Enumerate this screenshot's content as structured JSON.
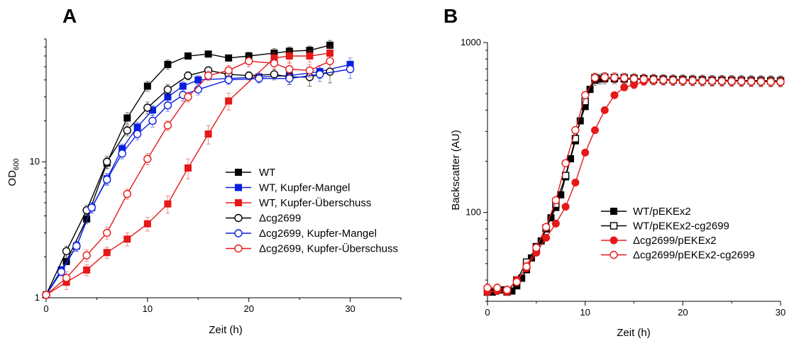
{
  "chart_data": [
    {
      "panel": "A",
      "type": "line",
      "y_scale": "log",
      "xlabel": "Zeit (h)",
      "ylabel": "OD",
      "ylabel_sub": "600",
      "xlim": [
        0,
        35
      ],
      "ylim": [
        1,
        80
      ],
      "x_ticks": [
        0,
        10,
        20,
        30
      ],
      "y_ticks": [
        1,
        10
      ],
      "legend_position": "lower-right",
      "series": [
        {
          "name": "WT",
          "color": "#000000",
          "marker": "filled-square",
          "x": [
            0,
            2,
            4,
            6,
            8,
            10,
            12,
            14,
            16,
            18,
            20,
            22.5,
            24,
            26,
            28
          ],
          "y": [
            1.05,
            1.85,
            3.8,
            9.8,
            21,
            36,
            52,
            60,
            62,
            58,
            60,
            63,
            65,
            66,
            72
          ],
          "err": [
            0,
            0.1,
            0.3,
            0.9,
            2,
            3,
            4,
            3,
            3,
            3,
            4,
            5,
            5,
            5,
            6
          ]
        },
        {
          "name": "WT, Kupfer-Mangel",
          "color": "#0a1ee0",
          "marker": "filled-square",
          "x": [
            0,
            1.5,
            3,
            4.5,
            6,
            7.5,
            9,
            10.5,
            12,
            13.5,
            15,
            18,
            21,
            24,
            27,
            30
          ],
          "y": [
            1.05,
            1.6,
            2.4,
            4.6,
            7.5,
            12.5,
            18,
            24,
            30,
            36,
            40,
            41,
            42,
            43,
            46,
            52
          ],
          "err": [
            0,
            0.1,
            0.2,
            0.4,
            0.7,
            1,
            1.5,
            2,
            2.5,
            3,
            3,
            3,
            3,
            4,
            5,
            6
          ]
        },
        {
          "name": "WT, Kupfer-Überschuss",
          "color": "#e61919",
          "marker": "filled-square",
          "x": [
            0,
            2,
            4,
            6,
            8,
            10,
            12,
            14,
            16,
            18,
            22.5,
            24,
            26,
            28
          ],
          "y": [
            1.05,
            1.3,
            1.6,
            2.15,
            2.7,
            3.5,
            4.9,
            9,
            16,
            28,
            58,
            60,
            60,
            63
          ],
          "err": [
            0,
            0.15,
            0.15,
            0.2,
            0.3,
            0.4,
            0.7,
            1.5,
            2.5,
            4,
            6,
            6,
            6,
            7
          ]
        },
        {
          "name": "Δcg2699",
          "color": "#000000",
          "marker": "open-circle",
          "x": [
            0,
            2,
            4,
            6,
            8,
            10,
            12,
            14,
            16,
            18,
            20,
            22.5,
            24,
            26,
            28
          ],
          "y": [
            1.05,
            2.2,
            4.4,
            10,
            17,
            25,
            34,
            43,
            47,
            44,
            43,
            44,
            42,
            42,
            46
          ],
          "err": [
            0,
            0.2,
            0.4,
            1,
            1.5,
            2.5,
            3,
            3,
            3,
            3,
            3,
            4,
            5,
            6,
            8
          ]
        },
        {
          "name": "Δcg2699, Kupfer-Mangel",
          "color": "#0a1ee0",
          "marker": "open-circle",
          "x": [
            0,
            1.5,
            3,
            4.5,
            6,
            7.5,
            9,
            10.5,
            12,
            13.5,
            15,
            18,
            21,
            24,
            27,
            30
          ],
          "y": [
            1.05,
            1.55,
            2.4,
            4.6,
            7.4,
            11.5,
            16,
            20,
            26,
            31,
            34,
            40,
            41,
            41,
            44,
            48
          ],
          "err": [
            0,
            0.1,
            0.2,
            0.4,
            0.7,
            1,
            1.5,
            2,
            2.5,
            3,
            3,
            3,
            3,
            4,
            5,
            7
          ]
        },
        {
          "name": "Δcg2699, Kupfer-Überschuss",
          "color": "#e61919",
          "marker": "open-circle",
          "x": [
            0,
            2,
            4,
            6,
            8,
            10,
            12,
            14,
            16,
            18,
            20,
            22.5,
            24,
            26,
            28
          ],
          "y": [
            1.05,
            1.4,
            2.05,
            3,
            5.8,
            10.5,
            18.5,
            30,
            43,
            47,
            55,
            53,
            48,
            47,
            55
          ],
          "err": [
            0,
            0.15,
            0.2,
            0.3,
            0.5,
            1,
            1.5,
            2.5,
            3.5,
            4,
            5,
            5,
            5,
            5,
            6
          ]
        }
      ]
    },
    {
      "panel": "B",
      "type": "line",
      "y_scale": "log",
      "xlabel": "Zeit (h)",
      "ylabel": "Backscatter (AU)",
      "xlim": [
        0,
        30
      ],
      "ylim": [
        30,
        1000
      ],
      "x_ticks": [
        0,
        10,
        20,
        30
      ],
      "y_ticks": [
        100,
        1000
      ],
      "legend_position": "center-right",
      "series": [
        {
          "name": "WT/pEKEx2",
          "color": "#000000",
          "marker": "filled-square",
          "x": [
            0,
            0.5,
            1,
            1.5,
            2,
            2.5,
            3,
            3.5,
            4,
            4.5,
            5,
            5.5,
            6,
            6.5,
            7,
            7.5,
            8,
            8.5,
            9,
            9.5,
            10,
            10.5,
            11,
            11.5,
            12,
            13,
            14,
            15,
            16,
            17,
            18,
            19,
            20,
            21,
            22,
            23,
            24,
            25,
            26,
            27,
            28,
            29,
            30
          ],
          "y": [
            34,
            34,
            35,
            35,
            34,
            34.5,
            37,
            41,
            46,
            54,
            63,
            68,
            80,
            93,
            107,
            127,
            162,
            207,
            264,
            346,
            420,
            530,
            600,
            610,
            612,
            612,
            610,
            608,
            605,
            603,
            602,
            600,
            600,
            598,
            597,
            596,
            596,
            595,
            595,
            594,
            594,
            593,
            593
          ],
          "err": [
            1.5,
            1.5,
            1.5,
            1.5,
            1.5,
            1.5,
            1.5,
            1.5,
            2,
            2,
            2,
            2,
            2,
            3,
            3,
            3,
            4,
            4,
            5,
            6,
            6,
            10,
            40,
            40,
            40,
            40,
            40,
            40,
            40,
            40,
            40,
            40,
            40,
            40,
            40,
            40,
            40,
            40,
            40,
            40,
            40,
            40,
            40
          ]
        },
        {
          "name": "WT/pEKEx2-cg2699",
          "color": "#000000",
          "marker": "open-square",
          "x": [
            0,
            1,
            2,
            3,
            4,
            5,
            6,
            7,
            8,
            9,
            10,
            11,
            12,
            13,
            14,
            15,
            16,
            17,
            18,
            19,
            20,
            21,
            22,
            23,
            24,
            25,
            26,
            27,
            28,
            29,
            30
          ],
          "y": [
            34,
            35,
            34.5,
            40,
            51,
            62,
            81,
            112,
            165,
            272,
            450,
            620,
            625,
            622,
            620,
            615,
            612,
            610,
            608,
            605,
            605,
            603,
            602,
            600,
            600,
            599,
            598,
            597,
            597,
            596,
            595
          ],
          "err": [
            1.5,
            1.5,
            1.5,
            2,
            2,
            2,
            3,
            4,
            5,
            7,
            12,
            40,
            40,
            40,
            40,
            40,
            40,
            40,
            40,
            40,
            40,
            40,
            40,
            40,
            40,
            40,
            40,
            40,
            40,
            40,
            40
          ]
        },
        {
          "name": "Δcg2699/pEKEx2",
          "color": "#e61919",
          "marker": "filled-circle",
          "x": [
            0,
            1,
            2,
            3,
            4,
            5,
            6,
            7,
            8,
            9,
            10,
            11,
            12,
            13,
            14,
            15,
            16,
            17,
            18,
            19,
            20,
            21,
            22,
            23,
            24,
            25,
            26,
            27,
            28,
            29,
            30
          ],
          "y": [
            34,
            34.5,
            34,
            40,
            47,
            58,
            71,
            86,
            108,
            150,
            225,
            305,
            400,
            490,
            545,
            565,
            590,
            600,
            600,
            598,
            596,
            595,
            594,
            593,
            592,
            591,
            590,
            589,
            588,
            587,
            586
          ],
          "err": [
            1.5,
            1.5,
            1.5,
            2,
            2,
            2,
            3,
            3,
            4,
            5,
            7,
            10,
            15,
            20,
            25,
            30,
            30,
            30,
            30,
            30,
            30,
            30,
            30,
            30,
            30,
            30,
            30,
            30,
            30,
            30,
            30
          ]
        },
        {
          "name": "Δcg2699/pEKEx2-cg2699",
          "color": "#e61919",
          "marker": "open-circle",
          "x": [
            0,
            1,
            2,
            3,
            4,
            5,
            6,
            7,
            8,
            9,
            10,
            11,
            12,
            13,
            14,
            15,
            16,
            17,
            18,
            19,
            20,
            21,
            22,
            23,
            24,
            25,
            26,
            27,
            28,
            29,
            30
          ],
          "y": [
            36,
            36,
            35,
            39,
            48,
            62,
            82,
            118,
            195,
            305,
            490,
            620,
            625,
            622,
            618,
            612,
            608,
            605,
            602,
            600,
            598,
            597,
            595,
            594,
            593,
            592,
            591,
            590,
            589,
            588,
            587
          ],
          "err": [
            2,
            2,
            2,
            2,
            3,
            3,
            4,
            5,
            7,
            10,
            20,
            40,
            40,
            40,
            40,
            40,
            40,
            40,
            40,
            40,
            40,
            40,
            40,
            40,
            40,
            40,
            40,
            40,
            40,
            40,
            40
          ]
        }
      ]
    }
  ]
}
